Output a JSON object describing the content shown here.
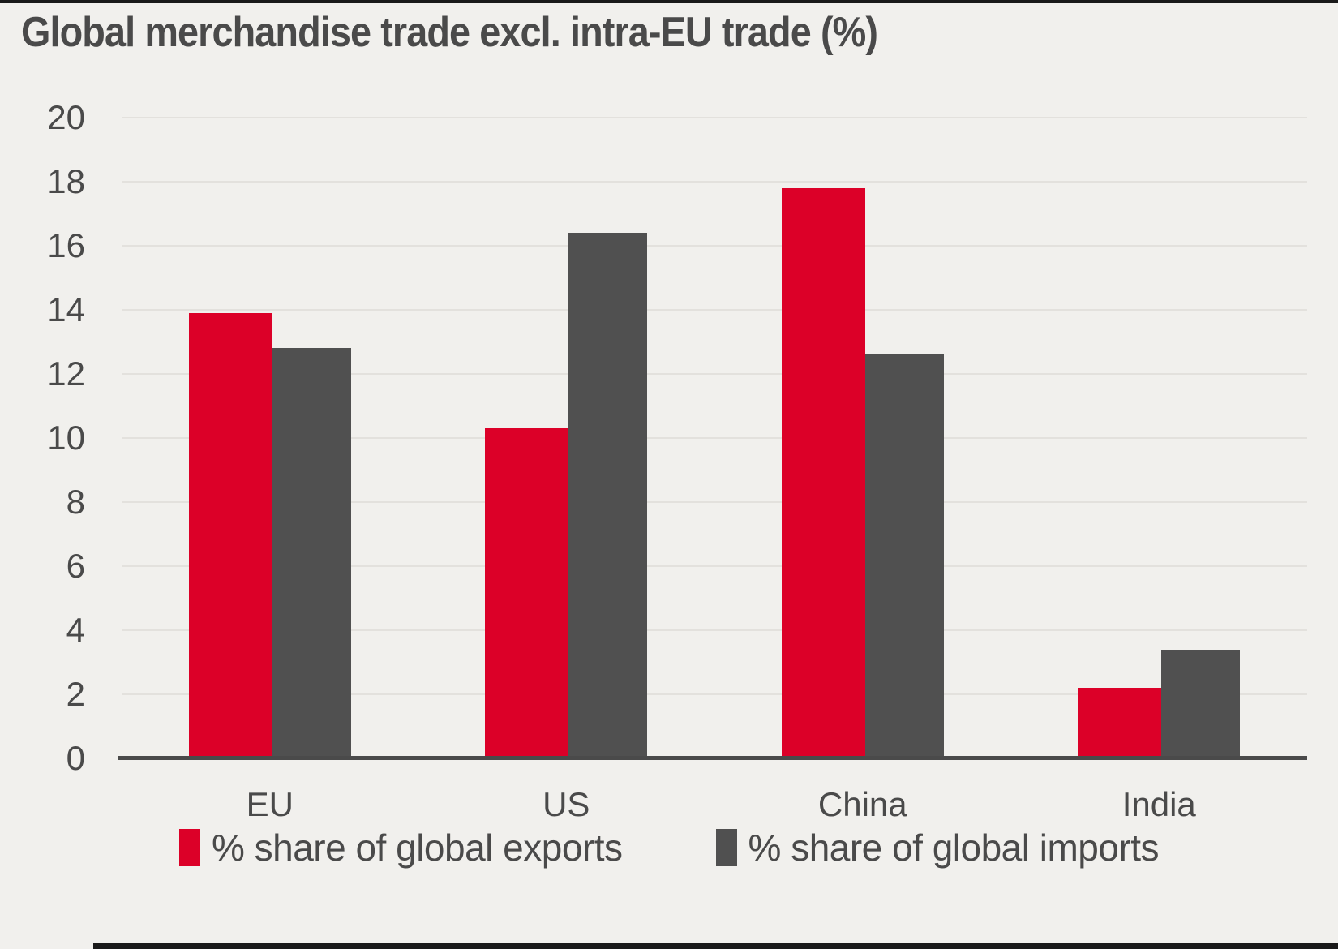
{
  "page": {
    "background_color": "#f1f0ed",
    "top_border_color": "#1a1a1a",
    "bottom_border_color": "#1a1a1a",
    "text_color": "#4a4a4a"
  },
  "chart_data": {
    "type": "bar",
    "title": "Global merchandise trade excl. intra-EU trade (%)",
    "categories": [
      "EU",
      "US",
      "China",
      "India"
    ],
    "series": [
      {
        "name": "% share of global exports",
        "color": "#dc0028",
        "values": [
          13.9,
          10.3,
          17.8,
          2.2
        ]
      },
      {
        "name": "% share of global imports",
        "color": "#505050",
        "values": [
          12.8,
          16.4,
          12.6,
          3.4
        ]
      }
    ],
    "xlabel": "",
    "ylabel": "",
    "ylim": [
      0,
      20
    ],
    "yticks": [
      0,
      2,
      4,
      6,
      8,
      10,
      12,
      14,
      16,
      18,
      20
    ],
    "grid": "horizontal",
    "gridline_color": "#e3e1dd",
    "axis_line_color": "#4a4a4a",
    "legend_position": "bottom"
  }
}
